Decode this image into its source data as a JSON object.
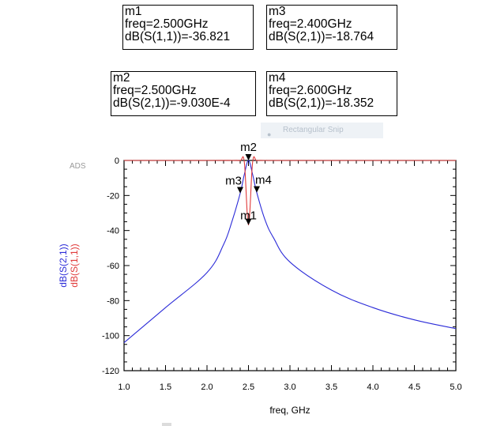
{
  "markers": {
    "m1": {
      "name": "m1",
      "freq": "freq=2.500GHz",
      "value": "dB(S(1,1))=-36.821"
    },
    "m3": {
      "name": "m3",
      "freq": "freq=2.400GHz",
      "value": "dB(S(2,1))=-18.764"
    },
    "m2": {
      "name": "m2",
      "freq": "freq=2.500GHz",
      "value": "dB(S(2,1))=-9.030E-4"
    },
    "m4": {
      "name": "m4",
      "freq": "freq=2.600GHz",
      "value": "dB(S(2,1))=-18.352"
    }
  },
  "overlay": {
    "snip_label": "Rectangular Snip"
  },
  "chart_data": {
    "type": "line",
    "watermark": "ADS",
    "xlabel": "freq, GHz",
    "ylabel_series": [
      "dB(S(2,1))",
      "dB(S(1,1))"
    ],
    "xlim": [
      1.0,
      5.0
    ],
    "ylim": [
      -120,
      0
    ],
    "x_ticks": [
      "1.0",
      "1.5",
      "2.0",
      "2.5",
      "3.0",
      "3.5",
      "4.0",
      "4.5",
      "5.0"
    ],
    "y_ticks": [
      "0",
      "-20",
      "-40",
      "-60",
      "-80",
      "-100",
      "-120"
    ],
    "grid": false,
    "series": [
      {
        "name": "dB(S(2,1))",
        "color": "#2b2bd8",
        "x": [
          1.0,
          1.5,
          2.0,
          2.2,
          2.3,
          2.4,
          2.45,
          2.5,
          2.55,
          2.6,
          2.7,
          2.8,
          3.0,
          3.5,
          4.0,
          4.5,
          5.0
        ],
        "y": [
          -104,
          -84,
          -64,
          -48,
          -35,
          -18.764,
          -8,
          -0.0009,
          -8,
          -18.352,
          -34,
          -44,
          -58,
          -74,
          -84,
          -91,
          -96
        ]
      },
      {
        "name": "dB(S(1,1))",
        "color": "#e03a3a",
        "x": [
          1.0,
          2.0,
          2.3,
          2.4,
          2.45,
          2.5,
          2.55,
          2.6,
          2.7,
          3.0,
          5.0
        ],
        "y": [
          0,
          0,
          0,
          -0.1,
          -1,
          -36.821,
          -1,
          -0.1,
          0,
          0,
          0
        ]
      }
    ],
    "marker_points": [
      {
        "name": "m2",
        "x": 2.5,
        "y": -0.0009
      },
      {
        "name": "m3",
        "x": 2.4,
        "y": -18.764
      },
      {
        "name": "m4",
        "x": 2.6,
        "y": -18.352
      },
      {
        "name": "m1",
        "x": 2.5,
        "y": -36.821
      }
    ]
  }
}
